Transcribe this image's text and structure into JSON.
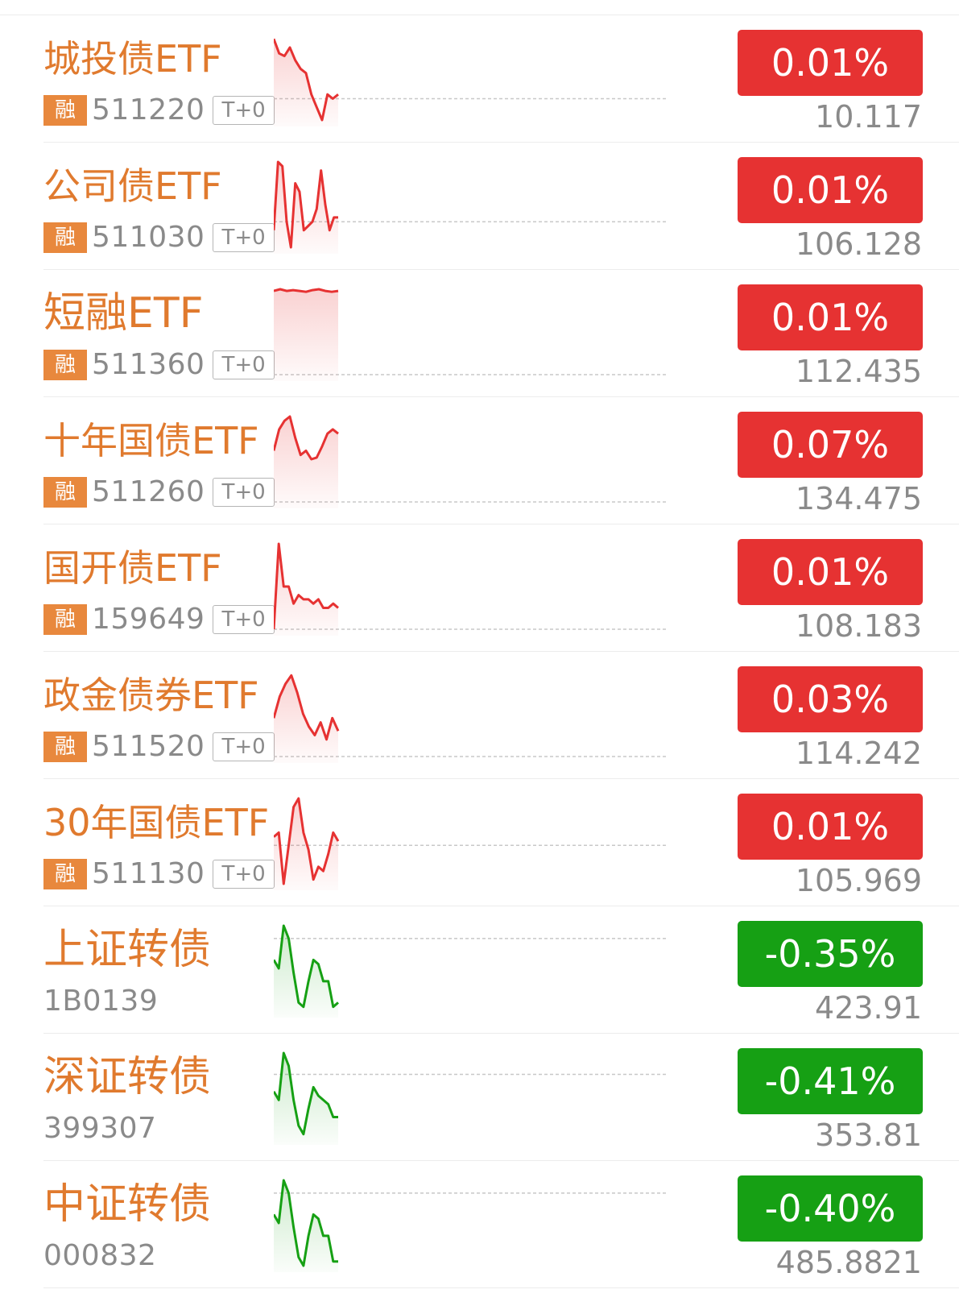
{
  "colors": {
    "up": "#e63232",
    "down": "#16a014",
    "name": "#e07a2e",
    "muted": "#8a8a8a"
  },
  "rows": [
    {
      "name": "城投债ETF",
      "margin": "融",
      "code": "511220",
      "t0": "T+0",
      "change": "0.01%",
      "price": "10.117",
      "trend": "up",
      "series": [
        0.95,
        0.78,
        0.75,
        0.85,
        0.7,
        0.6,
        0.55,
        0.3,
        0.15,
        0.0,
        0.3,
        0.25,
        0.3
      ],
      "baseline": 0.25
    },
    {
      "name": "公司债ETF",
      "margin": "融",
      "code": "511030",
      "t0": "T+0",
      "change": "0.01%",
      "price": "106.128",
      "trend": "up",
      "series": [
        0.2,
        1.0,
        0.95,
        0.3,
        0.0,
        0.75,
        0.65,
        0.2,
        0.25,
        0.3,
        0.45,
        0.9,
        0.5,
        0.2,
        0.35,
        0.35
      ],
      "baseline": 0.3
    },
    {
      "name": "短融ETF",
      "margin": "融",
      "code": "511360",
      "t0": "T+0",
      "change": "0.01%",
      "price": "112.435",
      "trend": "up",
      "series": [
        0.98,
        1.0,
        0.98,
        0.99,
        0.98,
        0.97,
        0.99,
        1.0,
        0.98,
        0.97,
        0.98
      ],
      "baseline": 0.0
    },
    {
      "name": "十年国债ETF",
      "margin": "融",
      "code": "511260",
      "t0": "T+0",
      "change": "0.07%",
      "price": "134.475",
      "trend": "up",
      "series": [
        0.6,
        0.85,
        0.95,
        1.0,
        0.75,
        0.55,
        0.6,
        0.5,
        0.52,
        0.65,
        0.8,
        0.85,
        0.8
      ],
      "baseline": 0.0
    },
    {
      "name": "国开债ETF",
      "margin": "融",
      "code": "159649",
      "t0": "T+0",
      "change": "0.01%",
      "price": "108.183",
      "trend": "up",
      "series": [
        0.0,
        1.0,
        0.5,
        0.5,
        0.3,
        0.4,
        0.35,
        0.35,
        0.3,
        0.35,
        0.25,
        0.25,
        0.3,
        0.25
      ],
      "baseline": 0.0
    },
    {
      "name": "政金债券ETF",
      "margin": "融",
      "code": "511520",
      "t0": "T+0",
      "change": "0.03%",
      "price": "114.242",
      "trend": "up",
      "series": [
        0.45,
        0.7,
        0.85,
        0.95,
        0.75,
        0.5,
        0.35,
        0.25,
        0.4,
        0.2,
        0.45,
        0.3
      ],
      "baseline": 0.0
    },
    {
      "name": "30年国债ETF",
      "margin": "融",
      "code": "511130",
      "t0": "T+0",
      "change": "0.01%",
      "price": "105.969",
      "trend": "up",
      "series": [
        0.55,
        0.6,
        0.0,
        0.45,
        0.9,
        1.0,
        0.6,
        0.4,
        0.05,
        0.2,
        0.15,
        0.35,
        0.6,
        0.5
      ],
      "baseline": 0.45
    },
    {
      "name": "上证转债",
      "margin": "",
      "code": "1B0139",
      "t0": "",
      "change": "-0.35%",
      "price": "423.91",
      "trend": "down",
      "series": [
        0.6,
        0.5,
        1.0,
        0.85,
        0.45,
        0.1,
        0.05,
        0.35,
        0.6,
        0.55,
        0.35,
        0.35,
        0.05,
        0.1
      ],
      "baseline": 0.85
    },
    {
      "name": "深证转债",
      "margin": "",
      "code": "399307",
      "t0": "",
      "change": "-0.41%",
      "price": "353.81",
      "trend": "down",
      "series": [
        0.55,
        0.45,
        1.0,
        0.85,
        0.45,
        0.15,
        0.05,
        0.35,
        0.6,
        0.5,
        0.45,
        0.4,
        0.25,
        0.25
      ],
      "baseline": 0.75
    },
    {
      "name": "中证转债",
      "margin": "",
      "code": "000832",
      "t0": "",
      "change": "-0.40%",
      "price": "485.8821",
      "trend": "down",
      "series": [
        0.6,
        0.5,
        1.0,
        0.85,
        0.45,
        0.1,
        0.0,
        0.35,
        0.6,
        0.55,
        0.35,
        0.35,
        0.05,
        0.05
      ],
      "baseline": 0.85
    }
  ]
}
